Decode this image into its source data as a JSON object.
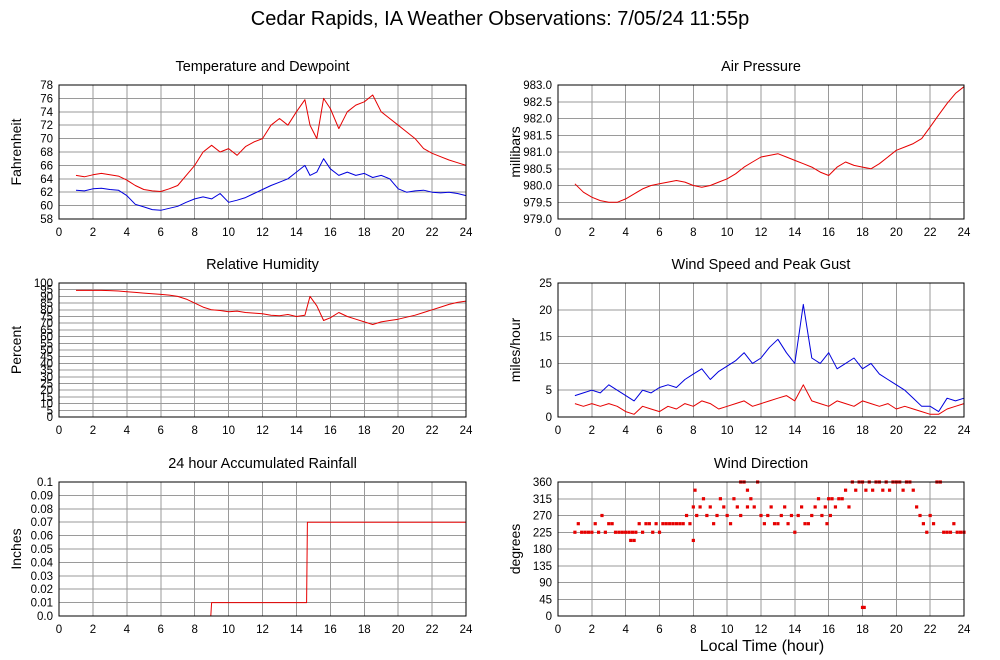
{
  "page": {
    "title": "Cedar Rapids, IA Weather Observations: 7/05/24 11:55p",
    "xlabel": "Local Time (hour)"
  },
  "colors": {
    "red": "#e60000",
    "blue": "#0000dd"
  },
  "chart_data": [
    {
      "id": "temp",
      "type": "line",
      "title": "Temperature and Dewpoint",
      "ylabel": "Fahrenheit",
      "xlim": [
        0,
        24
      ],
      "ylim": [
        58,
        78
      ],
      "xticks": [
        0,
        2,
        4,
        6,
        8,
        10,
        12,
        14,
        16,
        18,
        20,
        22,
        24
      ],
      "yticks": [
        58,
        60,
        62,
        64,
        66,
        68,
        70,
        72,
        74,
        76,
        78
      ],
      "grid": true,
      "series": [
        {
          "color": "red",
          "x": [
            1.0,
            1.5,
            2.0,
            2.5,
            3.0,
            3.5,
            4.0,
            4.5,
            5.0,
            5.5,
            6.0,
            6.5,
            7.0,
            7.5,
            8.0,
            8.5,
            9.0,
            9.5,
            10.0,
            10.5,
            11.0,
            11.5,
            12.0,
            12.5,
            13.0,
            13.5,
            14.0,
            14.5,
            14.8,
            15.2,
            15.6,
            16.0,
            16.5,
            17.0,
            17.5,
            18.0,
            18.5,
            19.0,
            19.5,
            20.0,
            20.5,
            21.0,
            21.5,
            22.0,
            22.5,
            23.0,
            23.5,
            24.0
          ],
          "y": [
            64.5,
            64.3,
            64.6,
            64.8,
            64.6,
            64.4,
            63.8,
            63.0,
            62.4,
            62.2,
            62.1,
            62.5,
            63.0,
            64.5,
            66.0,
            68.0,
            69.0,
            68.0,
            68.5,
            67.5,
            68.8,
            69.5,
            70.0,
            72.0,
            73.0,
            72.0,
            74.0,
            75.8,
            72.0,
            70.0,
            76.0,
            74.5,
            71.5,
            74.0,
            75.0,
            75.5,
            76.5,
            74.0,
            73.0,
            72.0,
            71.0,
            70.0,
            68.5,
            67.8,
            67.3,
            66.8,
            66.4,
            66.0
          ]
        },
        {
          "color": "blue",
          "x": [
            1.0,
            1.5,
            2.0,
            2.5,
            3.0,
            3.5,
            4.0,
            4.5,
            5.0,
            5.5,
            6.0,
            6.5,
            7.0,
            7.5,
            8.0,
            8.5,
            9.0,
            9.5,
            10.0,
            10.5,
            11.0,
            11.5,
            12.0,
            12.5,
            13.0,
            13.5,
            14.0,
            14.5,
            14.8,
            15.2,
            15.6,
            16.0,
            16.5,
            17.0,
            17.5,
            18.0,
            18.5,
            19.0,
            19.5,
            20.0,
            20.5,
            21.0,
            21.5,
            22.0,
            22.5,
            23.0,
            23.5,
            24.0
          ],
          "y": [
            62.3,
            62.2,
            62.5,
            62.6,
            62.4,
            62.3,
            61.5,
            60.2,
            59.8,
            59.4,
            59.3,
            59.6,
            59.9,
            60.5,
            61.0,
            61.3,
            61.0,
            61.8,
            60.5,
            60.8,
            61.2,
            61.8,
            62.4,
            63.0,
            63.5,
            64.0,
            65.0,
            66.0,
            64.5,
            65.0,
            67.0,
            65.5,
            64.5,
            65.0,
            64.5,
            64.8,
            64.2,
            64.5,
            64.0,
            62.5,
            62.0,
            62.2,
            62.3,
            62.0,
            61.9,
            62.0,
            61.8,
            61.5
          ]
        }
      ]
    },
    {
      "id": "pressure",
      "type": "line",
      "title": "Air Pressure",
      "ylabel": "millibars",
      "xlim": [
        0,
        24
      ],
      "ylim": [
        979.0,
        983.0
      ],
      "xticks": [
        0,
        2,
        4,
        6,
        8,
        10,
        12,
        14,
        16,
        18,
        20,
        22,
        24
      ],
      "yticks": [
        "979.0",
        "979.5",
        "980.0",
        "980.5",
        "981.0",
        "981.5",
        "982.0",
        "982.5",
        "983.0"
      ],
      "grid": true,
      "series": [
        {
          "color": "red",
          "x": [
            1.0,
            1.5,
            2.0,
            2.5,
            3.0,
            3.5,
            4.0,
            4.5,
            5.0,
            5.5,
            6.0,
            6.5,
            7.0,
            7.5,
            8.0,
            8.5,
            9.0,
            9.5,
            10.0,
            10.5,
            11.0,
            11.5,
            12.0,
            12.5,
            13.0,
            13.5,
            14.0,
            14.5,
            15.0,
            15.5,
            16.0,
            16.5,
            17.0,
            17.5,
            18.0,
            18.5,
            19.0,
            19.5,
            20.0,
            20.5,
            21.0,
            21.5,
            22.0,
            22.5,
            23.0,
            23.5,
            24.0
          ],
          "y": [
            980.05,
            979.8,
            979.65,
            979.55,
            979.5,
            979.5,
            979.6,
            979.75,
            979.9,
            980.0,
            980.05,
            980.1,
            980.15,
            980.1,
            980.0,
            979.95,
            980.0,
            980.1,
            980.2,
            980.35,
            980.55,
            980.7,
            980.85,
            980.9,
            980.95,
            980.85,
            980.75,
            980.65,
            980.55,
            980.4,
            980.3,
            980.55,
            980.7,
            980.6,
            980.55,
            980.5,
            980.65,
            980.85,
            981.05,
            981.15,
            981.25,
            981.4,
            981.75,
            982.1,
            982.45,
            982.75,
            982.95
          ]
        }
      ]
    },
    {
      "id": "humidity",
      "type": "line",
      "title": "Relative Humidity",
      "ylabel": "Percent",
      "xlim": [
        0,
        24
      ],
      "ylim": [
        0,
        100
      ],
      "xticks": [
        0,
        2,
        4,
        6,
        8,
        10,
        12,
        14,
        16,
        18,
        20,
        22,
        24
      ],
      "yticks": [
        0,
        5,
        10,
        15,
        20,
        25,
        30,
        35,
        40,
        45,
        50,
        55,
        60,
        65,
        70,
        75,
        80,
        85,
        90,
        95,
        100
      ],
      "grid": true,
      "series": [
        {
          "color": "red",
          "x": [
            1.0,
            1.5,
            2.0,
            2.5,
            3.0,
            3.5,
            4.0,
            4.5,
            5.0,
            5.5,
            6.0,
            6.5,
            7.0,
            7.5,
            8.0,
            8.5,
            9.0,
            9.5,
            10.0,
            10.5,
            11.0,
            11.5,
            12.0,
            12.5,
            13.0,
            13.5,
            14.0,
            14.5,
            14.8,
            15.2,
            15.6,
            16.0,
            16.5,
            17.0,
            17.5,
            18.0,
            18.5,
            19.0,
            19.5,
            20.0,
            20.5,
            21.0,
            21.5,
            22.0,
            22.5,
            23.0,
            23.5,
            24.0
          ],
          "y": [
            94.5,
            94.5,
            94.5,
            94.5,
            94.3,
            94.0,
            93.5,
            93.0,
            92.5,
            92.0,
            91.5,
            91.0,
            90.0,
            88.0,
            85.0,
            82.0,
            80.0,
            79.5,
            78.5,
            79.0,
            78.0,
            77.5,
            77.0,
            76.0,
            75.5,
            76.5,
            75.0,
            76.0,
            90.0,
            83.0,
            72.0,
            74.0,
            78.0,
            75.0,
            73.0,
            71.0,
            69.0,
            71.0,
            72.0,
            73.0,
            74.5,
            76.0,
            78.0,
            80.0,
            82.0,
            84.0,
            85.5,
            86.5
          ]
        }
      ]
    },
    {
      "id": "wind",
      "type": "line",
      "title": "Wind Speed and Peak Gust",
      "ylabel": "miles/hour",
      "xlim": [
        0,
        24
      ],
      "ylim": [
        0,
        25
      ],
      "xticks": [
        0,
        2,
        4,
        6,
        8,
        10,
        12,
        14,
        16,
        18,
        20,
        22,
        24
      ],
      "yticks": [
        0,
        5,
        10,
        15,
        20,
        25
      ],
      "grid": true,
      "series": [
        {
          "color": "red",
          "x": [
            1.0,
            1.5,
            2.0,
            2.5,
            3.0,
            3.5,
            4.0,
            4.5,
            5.0,
            5.5,
            6.0,
            6.5,
            7.0,
            7.5,
            8.0,
            8.5,
            9.0,
            9.5,
            10.0,
            10.5,
            11.0,
            11.5,
            12.0,
            12.5,
            13.0,
            13.5,
            14.0,
            14.5,
            15.0,
            15.5,
            16.0,
            16.5,
            17.0,
            17.5,
            18.0,
            18.5,
            19.0,
            19.5,
            20.0,
            20.5,
            21.0,
            21.5,
            22.0,
            22.5,
            23.0,
            23.5,
            24.0
          ],
          "y": [
            2.5,
            2.0,
            2.5,
            2.0,
            2.5,
            2.0,
            1.0,
            0.5,
            2.0,
            1.5,
            1.0,
            2.0,
            1.5,
            2.5,
            2.0,
            3.0,
            2.5,
            1.5,
            2.0,
            2.5,
            3.0,
            2.0,
            2.5,
            3.0,
            3.5,
            4.0,
            3.0,
            6.0,
            3.0,
            2.5,
            2.0,
            3.0,
            2.5,
            2.0,
            3.0,
            2.5,
            2.0,
            2.5,
            1.5,
            2.0,
            1.5,
            1.0,
            0.5,
            0.5,
            1.5,
            2.0,
            2.5
          ]
        },
        {
          "color": "blue",
          "x": [
            1.0,
            1.5,
            2.0,
            2.5,
            3.0,
            3.5,
            4.0,
            4.5,
            5.0,
            5.5,
            6.0,
            6.5,
            7.0,
            7.5,
            8.0,
            8.5,
            9.0,
            9.5,
            10.0,
            10.5,
            11.0,
            11.5,
            12.0,
            12.5,
            13.0,
            13.5,
            14.0,
            14.5,
            15.0,
            15.5,
            16.0,
            16.5,
            17.0,
            17.5,
            18.0,
            18.5,
            19.0,
            19.5,
            20.0,
            20.5,
            21.0,
            21.5,
            22.0,
            22.5,
            23.0,
            23.5,
            24.0
          ],
          "y": [
            4.0,
            4.5,
            5.0,
            4.5,
            6.0,
            5.0,
            4.0,
            3.0,
            5.0,
            4.5,
            5.5,
            6.0,
            5.5,
            7.0,
            8.0,
            9.0,
            7.0,
            8.5,
            9.5,
            10.5,
            12.0,
            10.0,
            11.0,
            13.0,
            14.5,
            12.0,
            10.0,
            21.0,
            11.0,
            10.0,
            12.0,
            9.0,
            10.0,
            11.0,
            9.0,
            10.0,
            8.0,
            7.0,
            6.0,
            5.0,
            3.5,
            2.0,
            2.0,
            1.0,
            3.5,
            3.0,
            3.5
          ]
        }
      ]
    },
    {
      "id": "rain",
      "type": "line",
      "title": "24 hour Accumulated Rainfall",
      "ylabel": "Inches",
      "xlim": [
        0,
        24
      ],
      "ylim": [
        0,
        0.1
      ],
      "xticks": [
        0,
        2,
        4,
        6,
        8,
        10,
        12,
        14,
        16,
        18,
        20,
        22,
        24
      ],
      "yticks": [
        "0.0",
        "0.01",
        "0.02",
        "0.03",
        "0.04",
        "0.05",
        "0.06",
        "0.07",
        "0.08",
        "0.09",
        "0.1"
      ],
      "grid": true,
      "series": [
        {
          "color": "red",
          "x": [
            1.0,
            8.95,
            9.0,
            14.6,
            14.65,
            24.0
          ],
          "y": [
            0.0,
            0.0,
            0.01,
            0.01,
            0.07,
            0.07
          ]
        }
      ]
    },
    {
      "id": "direction",
      "type": "scatter",
      "title": "Wind Direction",
      "ylabel": "degrees",
      "xlim": [
        0,
        24
      ],
      "ylim": [
        0,
        360
      ],
      "xticks": [
        0,
        2,
        4,
        6,
        8,
        10,
        12,
        14,
        16,
        18,
        20,
        22,
        24
      ],
      "yticks": [
        0,
        45,
        90,
        135,
        180,
        225,
        270,
        315,
        360
      ],
      "grid": true,
      "series": [
        {
          "color": "red",
          "x": [
            1.0,
            1.2,
            1.4,
            1.6,
            1.8,
            2.0,
            2.2,
            2.4,
            2.6,
            2.8,
            3.0,
            3.2,
            3.4,
            3.6,
            3.8,
            4.0,
            4.2,
            4.4,
            4.6,
            4.8,
            5.0,
            5.2,
            5.4,
            5.6,
            5.8,
            6.0,
            6.2,
            6.4,
            6.6,
            6.8,
            7.0,
            7.2,
            7.4,
            7.6,
            7.8,
            8.0,
            8.2,
            8.4,
            8.6,
            8.8,
            9.0,
            9.2,
            9.4,
            9.6,
            9.8,
            10.0,
            10.2,
            10.4,
            10.6,
            10.8,
            11.0,
            11.2,
            11.4,
            11.6,
            11.8,
            12.0,
            12.2,
            12.4,
            12.6,
            12.8,
            13.0,
            13.2,
            13.4,
            13.6,
            13.8,
            14.0,
            14.2,
            14.4,
            14.6,
            14.8,
            15.0,
            15.2,
            15.4,
            15.6,
            15.8,
            16.0,
            16.2,
            16.4,
            16.6,
            16.8,
            17.0,
            17.2,
            17.4,
            17.6,
            17.8,
            18.0,
            18.2,
            18.4,
            18.6,
            18.8,
            19.0,
            19.2,
            19.4,
            19.6,
            19.8,
            20.0,
            20.2,
            20.4,
            20.6,
            20.8,
            21.0,
            21.2,
            21.4,
            21.6,
            21.8,
            22.0,
            22.2,
            22.4,
            22.6,
            22.8,
            23.0,
            23.2,
            23.4,
            23.6,
            23.8,
            24.0,
            8.0,
            8.1,
            18.0,
            18.1,
            4.3,
            4.5,
            10.8,
            11.2,
            15.9,
            16.1
          ],
          "y": [
            225,
            248,
            225,
            225,
            225,
            225,
            248,
            225,
            270,
            225,
            248,
            248,
            225,
            225,
            225,
            225,
            225,
            225,
            225,
            248,
            225,
            248,
            248,
            225,
            248,
            225,
            248,
            248,
            248,
            248,
            248,
            248,
            248,
            270,
            248,
            293,
            270,
            293,
            315,
            270,
            293,
            248,
            270,
            315,
            293,
            270,
            248,
            315,
            293,
            270,
            360,
            293,
            315,
            293,
            360,
            270,
            248,
            270,
            293,
            248,
            248,
            270,
            293,
            248,
            270,
            225,
            270,
            293,
            248,
            248,
            270,
            293,
            315,
            270,
            293,
            315,
            315,
            293,
            315,
            315,
            338,
            293,
            360,
            338,
            360,
            360,
            338,
            360,
            338,
            360,
            360,
            338,
            360,
            338,
            360,
            360,
            360,
            338,
            360,
            360,
            338,
            293,
            270,
            248,
            225,
            270,
            248,
            360,
            360,
            225,
            225,
            225,
            248,
            225,
            225,
            225,
            203,
            338,
            23,
            23,
            203,
            203,
            360,
            338,
            248,
            270
          ]
        }
      ]
    }
  ]
}
